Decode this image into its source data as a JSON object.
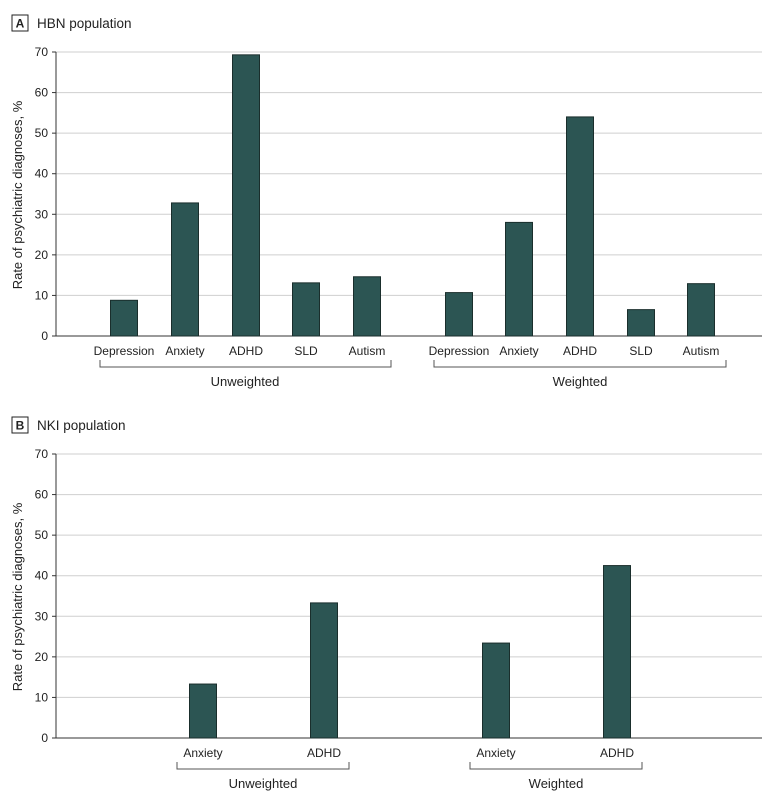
{
  "panels": [
    {
      "letter": "A",
      "title": "HBN population",
      "ylabel": "Rate of psychiatric diagnoses, %",
      "ylim": [
        0,
        70
      ],
      "yticks": [
        "0",
        "10",
        "20",
        "30",
        "40",
        "50",
        "60",
        "70"
      ],
      "groups": [
        "Unweighted",
        "Weighted"
      ]
    },
    {
      "letter": "B",
      "title": "NKI population",
      "ylabel": "Rate of psychiatric diagnoses, %",
      "ylim": [
        0,
        70
      ],
      "yticks": [
        "0",
        "10",
        "20",
        "30",
        "40",
        "50",
        "60",
        "70"
      ],
      "groups": [
        "Unweighted",
        "Weighted"
      ]
    }
  ],
  "chart_data": [
    {
      "type": "bar",
      "title": "HBN population",
      "ylabel": "Rate of psychiatric diagnoses, %",
      "ylim": [
        0,
        70
      ],
      "bar_color": "#2c5553",
      "groups": [
        {
          "name": "Unweighted",
          "categories": [
            "Depression",
            "Anxiety",
            "ADHD",
            "SLD",
            "Autism"
          ],
          "values": [
            8.8,
            32.8,
            69.3,
            13.1,
            14.6
          ]
        },
        {
          "name": "Weighted",
          "categories": [
            "Depression",
            "Anxiety",
            "ADHD",
            "SLD",
            "Autism"
          ],
          "values": [
            10.7,
            28.0,
            54.0,
            6.5,
            12.9
          ]
        }
      ]
    },
    {
      "type": "bar",
      "title": "NKI population",
      "ylabel": "Rate of psychiatric diagnoses, %",
      "ylim": [
        0,
        70
      ],
      "bar_color": "#2c5553",
      "groups": [
        {
          "name": "Unweighted",
          "categories": [
            "Anxiety",
            "ADHD"
          ],
          "values": [
            13.3,
            33.3
          ]
        },
        {
          "name": "Weighted",
          "categories": [
            "Anxiety",
            "ADHD"
          ],
          "values": [
            23.4,
            42.5
          ]
        }
      ]
    }
  ]
}
